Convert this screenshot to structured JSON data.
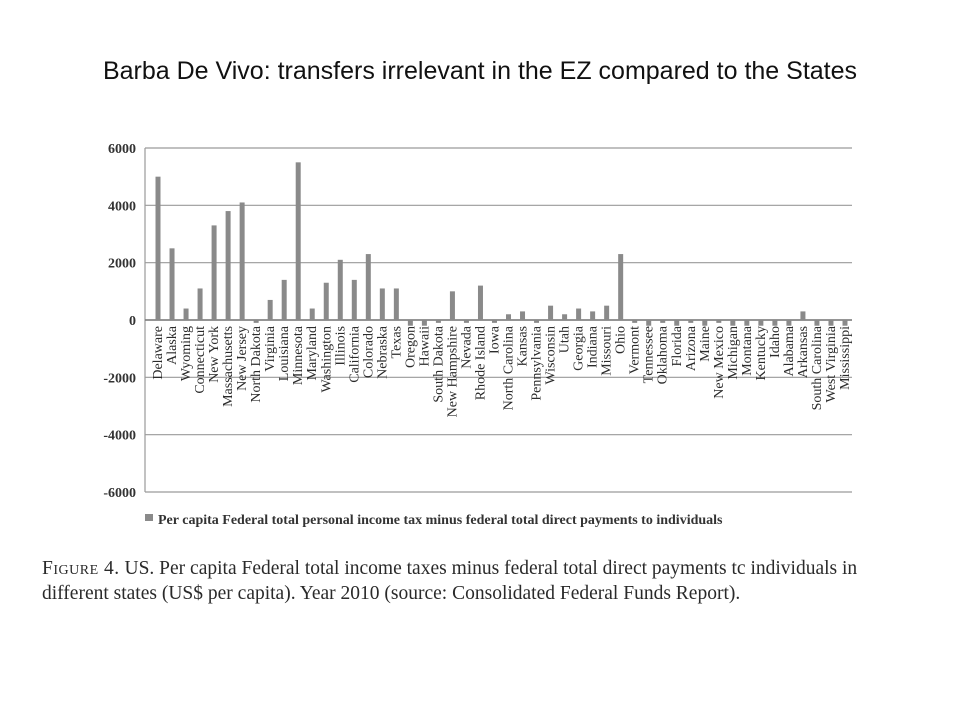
{
  "slide": {
    "title": "Barba De Vivo: transfers irrelevant in the EZ compared to the States"
  },
  "figure": {
    "label": "Figure 4.",
    "caption": "US. Per capita Federal total income taxes minus federal total direct payments tc individuals in different states (US$ per capita). Year 2010 (source: Consolidated Federal Funds Report)."
  },
  "chart_data": {
    "type": "bar",
    "title": "",
    "xlabel": "",
    "ylabel": "",
    "ylim": [
      -6000,
      6000
    ],
    "yticks": [
      6000,
      4000,
      2000,
      0,
      -2000,
      -4000,
      -6000
    ],
    "grid": true,
    "legend_position": "bottom",
    "bar_color": "#8a8a8a",
    "categories": [
      "Delaware",
      "Alaska",
      "Wyoming",
      "Connecticut",
      "New York",
      "Massachusetts",
      "New Jersey",
      "North Dakota",
      "Virginia",
      "Louisiana",
      "Minnesota",
      "Maryland",
      "Washington",
      "Illinois",
      "California",
      "Colorado",
      "Nebraska",
      "Texas",
      "Oregon",
      "Hawaii",
      "South Dakota",
      "New Hampshire",
      "Nevada",
      "Rhode Island",
      "Iowa",
      "North Carolina",
      "Kansas",
      "Pennsylvania",
      "Wisconsin",
      "Utah",
      "Georgia",
      "Indiana",
      "Missouri",
      "Ohio",
      "Vermont",
      "Tennessee",
      "Oklahoma",
      "Florida",
      "Arizona",
      "Maine",
      "New Mexico",
      "Michigan",
      "Montana",
      "Kentucky",
      "Idaho",
      "Alabama",
      "Arkansas",
      "South Carolina",
      "West Virginia",
      "Mississippi"
    ],
    "series": [
      {
        "name": "Per capita Federal total personal income tax minus federal total direct payments to individuals",
        "values": [
          5000,
          2500,
          400,
          1100,
          3300,
          3800,
          4100,
          -100,
          700,
          1400,
          5500,
          400,
          1300,
          2100,
          1400,
          2300,
          1100,
          1100,
          -200,
          -200,
          -100,
          1000,
          -100,
          1200,
          -100,
          200,
          300,
          -100,
          500,
          200,
          400,
          300,
          500,
          2300,
          -100,
          -200,
          -100,
          -200,
          -100,
          -200,
          -100,
          -200,
          -200,
          -200,
          -200,
          -200,
          300,
          -200,
          -200,
          -200
        ]
      }
    ]
  }
}
